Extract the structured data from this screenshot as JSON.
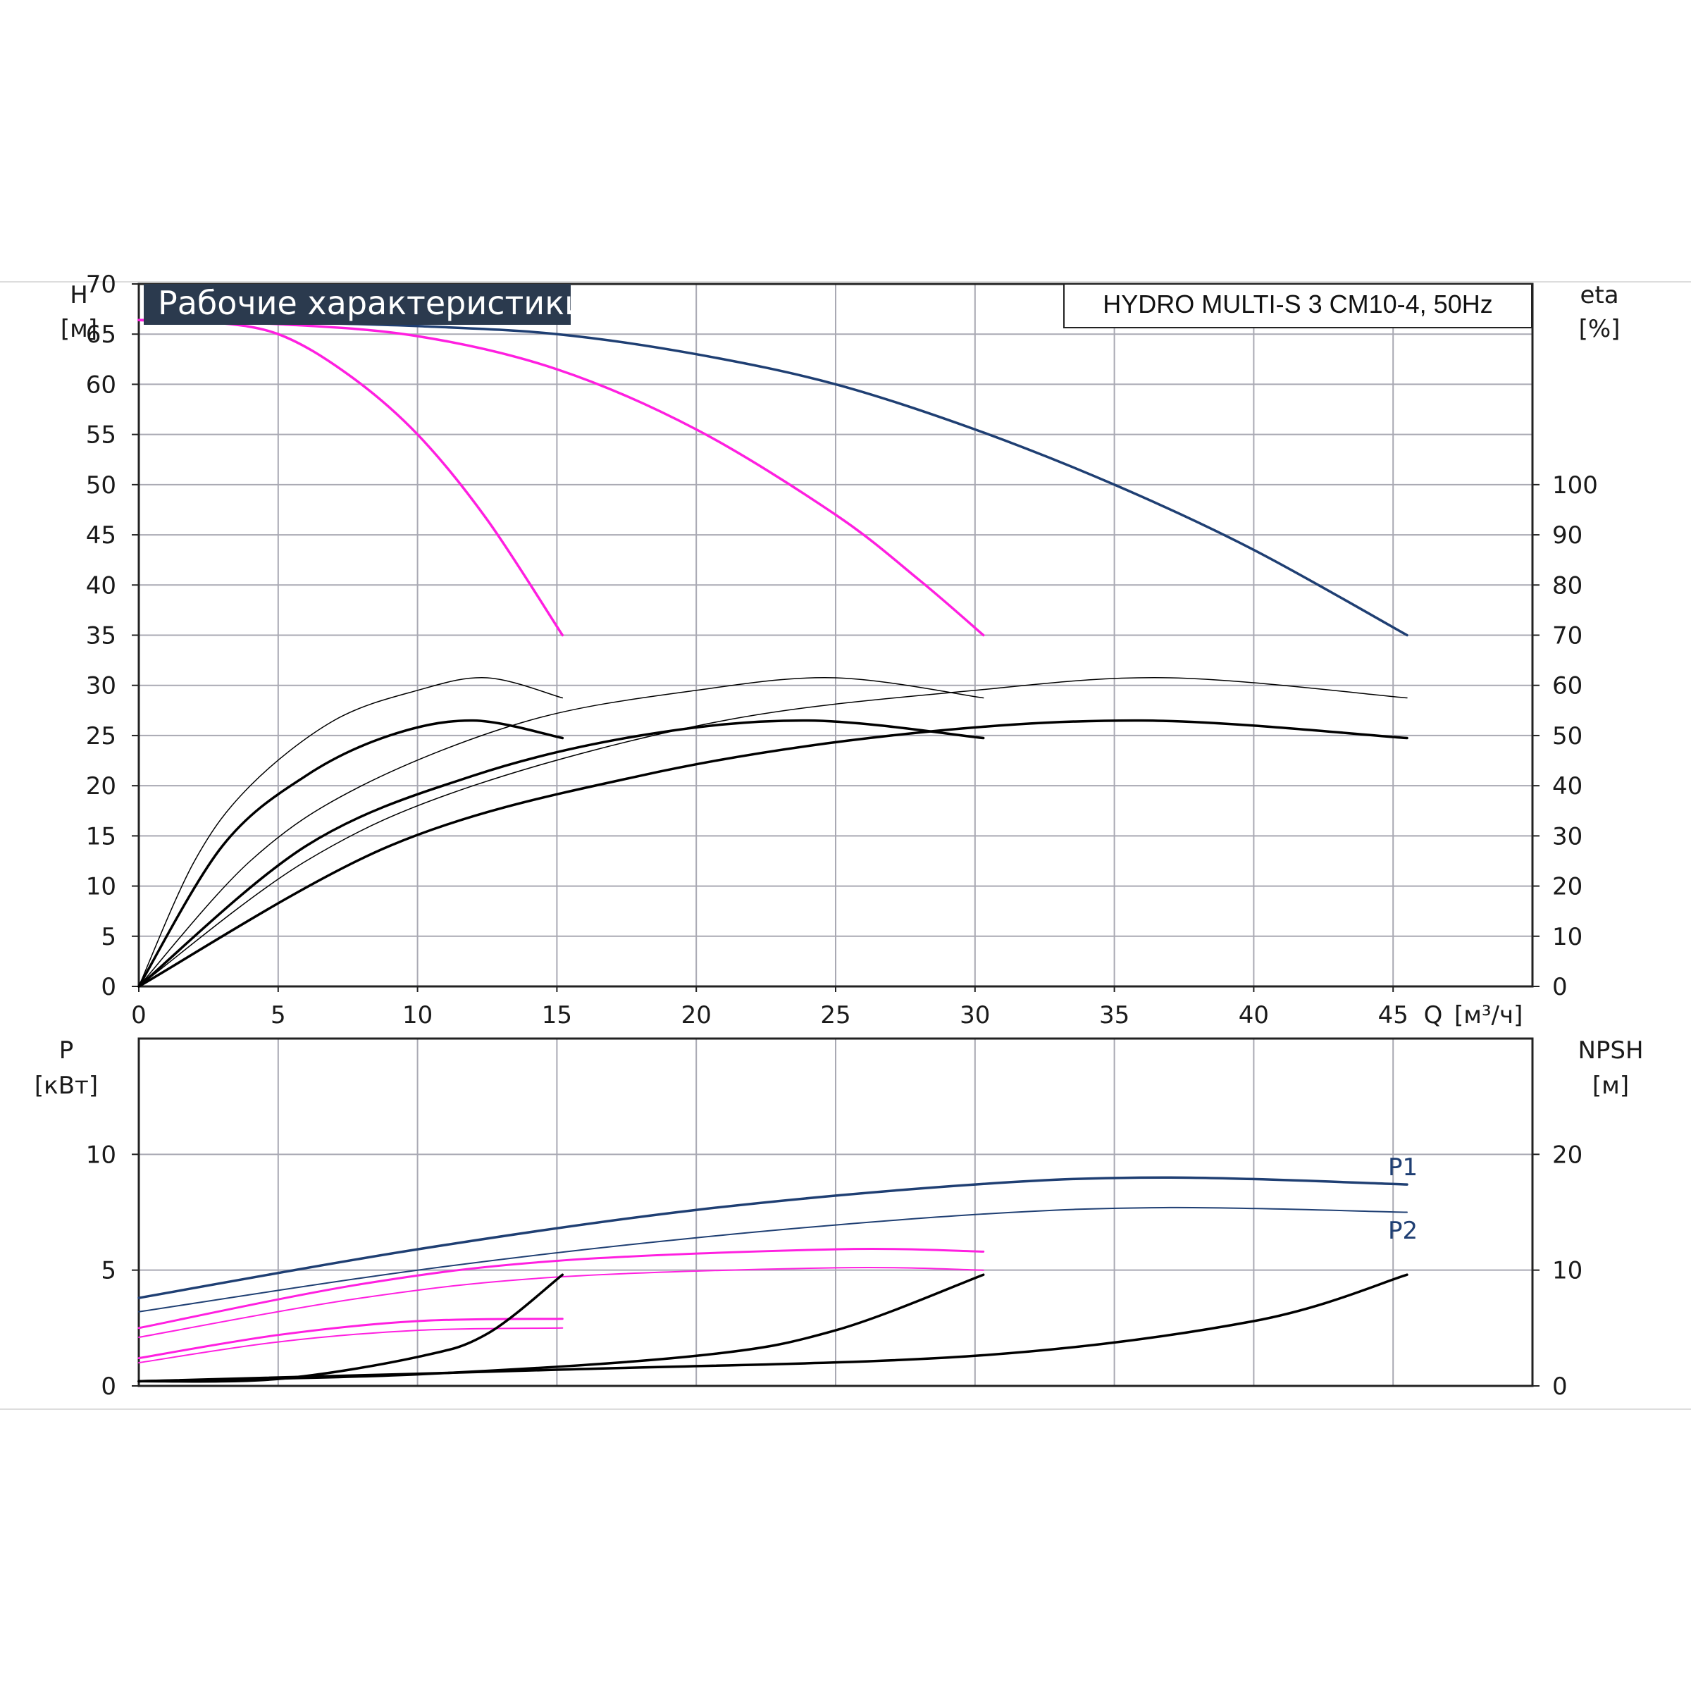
{
  "title": "Рабочие характеристики",
  "model": "HYDRO MULTI-S 3 CM10-4, 50Hz",
  "colors": {
    "title_bg": "#2b3a4e",
    "blue": "#1f3f73",
    "magenta": "#ff1fe0",
    "black": "#000000"
  },
  "chart_data": [
    {
      "type": "line",
      "name": "performance",
      "x_axis": {
        "label": "Q",
        "unit": "[м³/ч]",
        "range": [
          0,
          50
        ],
        "ticks": [
          0,
          5,
          10,
          15,
          20,
          25,
          30,
          35,
          40,
          45
        ]
      },
      "y_left": {
        "label": "H",
        "unit": "[м]",
        "range": [
          0,
          70
        ],
        "ticks": [
          0,
          5,
          10,
          15,
          20,
          25,
          30,
          35,
          40,
          45,
          50,
          55,
          60,
          65,
          70
        ]
      },
      "y_right": {
        "label": "eta",
        "unit": "[%]",
        "range": [
          0,
          140
        ],
        "ticks": [
          0,
          10,
          20,
          30,
          40,
          50,
          60,
          70,
          80,
          90,
          100
        ]
      },
      "grid": true,
      "series": [
        {
          "axis": "left",
          "color": "blue",
          "width": 3.5,
          "points": [
            [
              0,
              66.4
            ],
            [
              5,
              66.2
            ],
            [
              10,
              65.8
            ],
            [
              15,
              65
            ],
            [
              20,
              63
            ],
            [
              25,
              60
            ],
            [
              30,
              55.5
            ],
            [
              35,
              50
            ],
            [
              40,
              43.5
            ],
            [
              45.5,
              35
            ]
          ]
        },
        {
          "axis": "left",
          "color": "magenta",
          "width": 3.5,
          "points": [
            [
              0,
              66.4
            ],
            [
              5,
              66
            ],
            [
              10,
              64.8
            ],
            [
              15,
              61.5
            ],
            [
              20,
              55.5
            ],
            [
              25,
              47
            ],
            [
              28,
              40.5
            ],
            [
              30.3,
              35
            ]
          ]
        },
        {
          "axis": "left",
          "color": "magenta",
          "width": 3.5,
          "points": [
            [
              0,
              66.4
            ],
            [
              2.5,
              66.2
            ],
            [
              5,
              65
            ],
            [
              7.5,
              61
            ],
            [
              10,
              55
            ],
            [
              12.5,
              46.5
            ],
            [
              15.2,
              35
            ]
          ]
        },
        {
          "axis": "right",
          "color": "black",
          "width": 3.5,
          "points": [
            [
              0,
              0
            ],
            [
              3,
              28
            ],
            [
              6,
              42
            ],
            [
              9,
              50
            ],
            [
              12,
              53
            ],
            [
              15.2,
              49.5
            ]
          ]
        },
        {
          "axis": "right",
          "color": "black",
          "width": 1.5,
          "points": [
            [
              0,
              0
            ],
            [
              2,
              25
            ],
            [
              4,
              40
            ],
            [
              7,
              53
            ],
            [
              10,
              59
            ],
            [
              12.5,
              61.5
            ],
            [
              15.2,
              57.5
            ]
          ]
        },
        {
          "axis": "right",
          "color": "black",
          "width": 3.5,
          "points": [
            [
              0,
              0
            ],
            [
              6,
              28
            ],
            [
              12,
              42
            ],
            [
              18,
              50
            ],
            [
              24,
              53
            ],
            [
              30.3,
              49.5
            ]
          ]
        },
        {
          "axis": "right",
          "color": "black",
          "width": 1.5,
          "points": [
            [
              0,
              0
            ],
            [
              4,
              25
            ],
            [
              8,
              40
            ],
            [
              14,
              53
            ],
            [
              20,
              59
            ],
            [
              25,
              61.5
            ],
            [
              30.3,
              57.5
            ]
          ]
        },
        {
          "axis": "right",
          "color": "black",
          "width": 3.5,
          "points": [
            [
              0,
              0
            ],
            [
              9,
              28
            ],
            [
              18,
              42
            ],
            [
              27,
              50
            ],
            [
              36,
              53
            ],
            [
              45.5,
              49.5
            ]
          ]
        },
        {
          "axis": "right",
          "color": "black",
          "width": 1.5,
          "points": [
            [
              0,
              0
            ],
            [
              6,
              25
            ],
            [
              12,
              40
            ],
            [
              21,
              53
            ],
            [
              30,
              59
            ],
            [
              37,
              61.5
            ],
            [
              45.5,
              57.5
            ]
          ]
        }
      ]
    },
    {
      "type": "line",
      "name": "power",
      "x_axis": {
        "range": [
          0,
          50
        ]
      },
      "y_left": {
        "label": "P",
        "unit": "[кВт]",
        "range": [
          0,
          15
        ],
        "ticks": [
          0,
          5,
          10
        ]
      },
      "y_right": {
        "label": "NPSH",
        "unit": "[м]",
        "range": [
          0,
          30
        ],
        "ticks": [
          0,
          10,
          20
        ]
      },
      "grid": true,
      "series_labels": [
        "P1",
        "P2"
      ],
      "series": [
        {
          "axis": "left",
          "color": "blue",
          "width": 3.5,
          "name": "P1",
          "points": [
            [
              0,
              3.8
            ],
            [
              10,
              5.9
            ],
            [
              20,
              7.6
            ],
            [
              30,
              8.7
            ],
            [
              37,
              9.0
            ],
            [
              45.5,
              8.7
            ]
          ]
        },
        {
          "axis": "left",
          "color": "blue",
          "width": 2,
          "name": "P2",
          "points": [
            [
              0,
              3.2
            ],
            [
              10,
              5.0
            ],
            [
              20,
              6.4
            ],
            [
              30,
              7.4
            ],
            [
              37,
              7.7
            ],
            [
              45.5,
              7.5
            ]
          ]
        },
        {
          "axis": "left",
          "color": "magenta",
          "width": 3,
          "points": [
            [
              0,
              2.5
            ],
            [
              8,
              4.4
            ],
            [
              15,
              5.4
            ],
            [
              25,
              5.9
            ],
            [
              30.3,
              5.8
            ]
          ]
        },
        {
          "axis": "left",
          "color": "magenta",
          "width": 2,
          "points": [
            [
              0,
              2.1
            ],
            [
              8,
              3.8
            ],
            [
              15,
              4.7
            ],
            [
              25,
              5.1
            ],
            [
              30.3,
              5.0
            ]
          ]
        },
        {
          "axis": "left",
          "color": "magenta",
          "width": 3,
          "points": [
            [
              0,
              1.2
            ],
            [
              5,
              2.2
            ],
            [
              10,
              2.8
            ],
            [
              15.2,
              2.9
            ]
          ]
        },
        {
          "axis": "left",
          "color": "magenta",
          "width": 2,
          "points": [
            [
              0,
              1.0
            ],
            [
              5,
              1.9
            ],
            [
              10,
              2.4
            ],
            [
              15.2,
              2.5
            ]
          ]
        },
        {
          "axis": "right",
          "color": "black",
          "width": 3.5,
          "points": [
            [
              0,
              0.4
            ],
            [
              5,
              0.6
            ],
            [
              10,
              2.5
            ],
            [
              12.5,
              4.5
            ],
            [
              15.2,
              9.6
            ]
          ]
        },
        {
          "axis": "right",
          "color": "black",
          "width": 3.5,
          "points": [
            [
              0,
              0.4
            ],
            [
              10,
              1.0
            ],
            [
              20,
              2.6
            ],
            [
              25,
              4.8
            ],
            [
              30.3,
              9.6
            ]
          ]
        },
        {
          "axis": "right",
          "color": "black",
          "width": 3.5,
          "points": [
            [
              0,
              0.4
            ],
            [
              15,
              1.4
            ],
            [
              30,
              2.6
            ],
            [
              40,
              5.6
            ],
            [
              45.5,
              9.6
            ]
          ]
        }
      ]
    }
  ]
}
